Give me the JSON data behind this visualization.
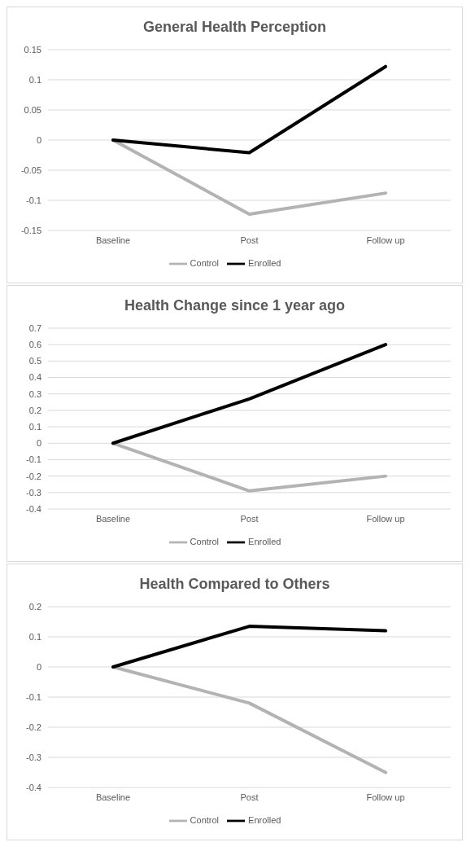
{
  "chart_data": [
    {
      "type": "line",
      "title": "General Health Perception",
      "categories": [
        "Baseline",
        "Post",
        "Follow up"
      ],
      "series": [
        {
          "name": "Control",
          "color": "#b3b3b3",
          "values": [
            0,
            -0.123,
            -0.088
          ]
        },
        {
          "name": "Enrolled",
          "color": "#000000",
          "values": [
            0,
            -0.021,
            0.122
          ]
        }
      ],
      "ylim": [
        -0.15,
        0.15
      ],
      "yticks": [
        -0.15,
        -0.1,
        -0.05,
        0,
        0.05,
        0.1,
        0.15
      ],
      "grid": "y",
      "legend": "bottom",
      "marker": "none",
      "line_style": "solid"
    },
    {
      "type": "line",
      "title": "Health Change since 1 year ago",
      "categories": [
        "Baseline",
        "Post",
        "Follow up"
      ],
      "series": [
        {
          "name": "Control",
          "color": "#b3b3b3",
          "values": [
            0,
            -0.29,
            -0.2
          ]
        },
        {
          "name": "Enrolled",
          "color": "#000000",
          "values": [
            0,
            0.27,
            0.6
          ]
        }
      ],
      "ylim": [
        -0.4,
        0.7
      ],
      "yticks": [
        -0.4,
        -0.3,
        -0.2,
        -0.1,
        0,
        0.1,
        0.2,
        0.3,
        0.4,
        0.5,
        0.6,
        0.7
      ],
      "grid": "y",
      "legend": "bottom",
      "marker": "none",
      "line_style": "solid"
    },
    {
      "type": "line",
      "title": "Health Compared to Others",
      "categories": [
        "Baseline",
        "Post",
        "Follow up"
      ],
      "series": [
        {
          "name": "Control",
          "color": "#b3b3b3",
          "values": [
            0,
            -0.12,
            -0.35
          ]
        },
        {
          "name": "Enrolled",
          "color": "#000000",
          "values": [
            0,
            0.135,
            0.12
          ]
        }
      ],
      "ylim": [
        -0.4,
        0.2
      ],
      "yticks": [
        -0.4,
        -0.3,
        -0.2,
        -0.1,
        0,
        0.1,
        0.2
      ],
      "grid": "y",
      "legend": "bottom",
      "marker": "none",
      "line_style": "solid"
    }
  ]
}
